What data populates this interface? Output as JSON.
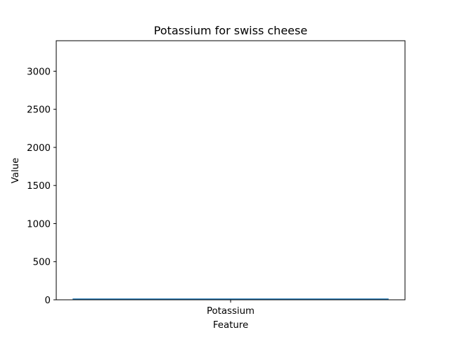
{
  "chart_data": {
    "type": "bar",
    "title": "Potassium for swiss cheese",
    "xlabel": "Feature",
    "ylabel": "Value",
    "categories": [
      "Potassium"
    ],
    "values": [
      17
    ],
    "ylim": [
      0,
      3400
    ],
    "yticks": [
      0,
      500,
      1000,
      1500,
      2000,
      2500,
      3000
    ],
    "grid": false,
    "bar_color": "#1f77b4"
  }
}
